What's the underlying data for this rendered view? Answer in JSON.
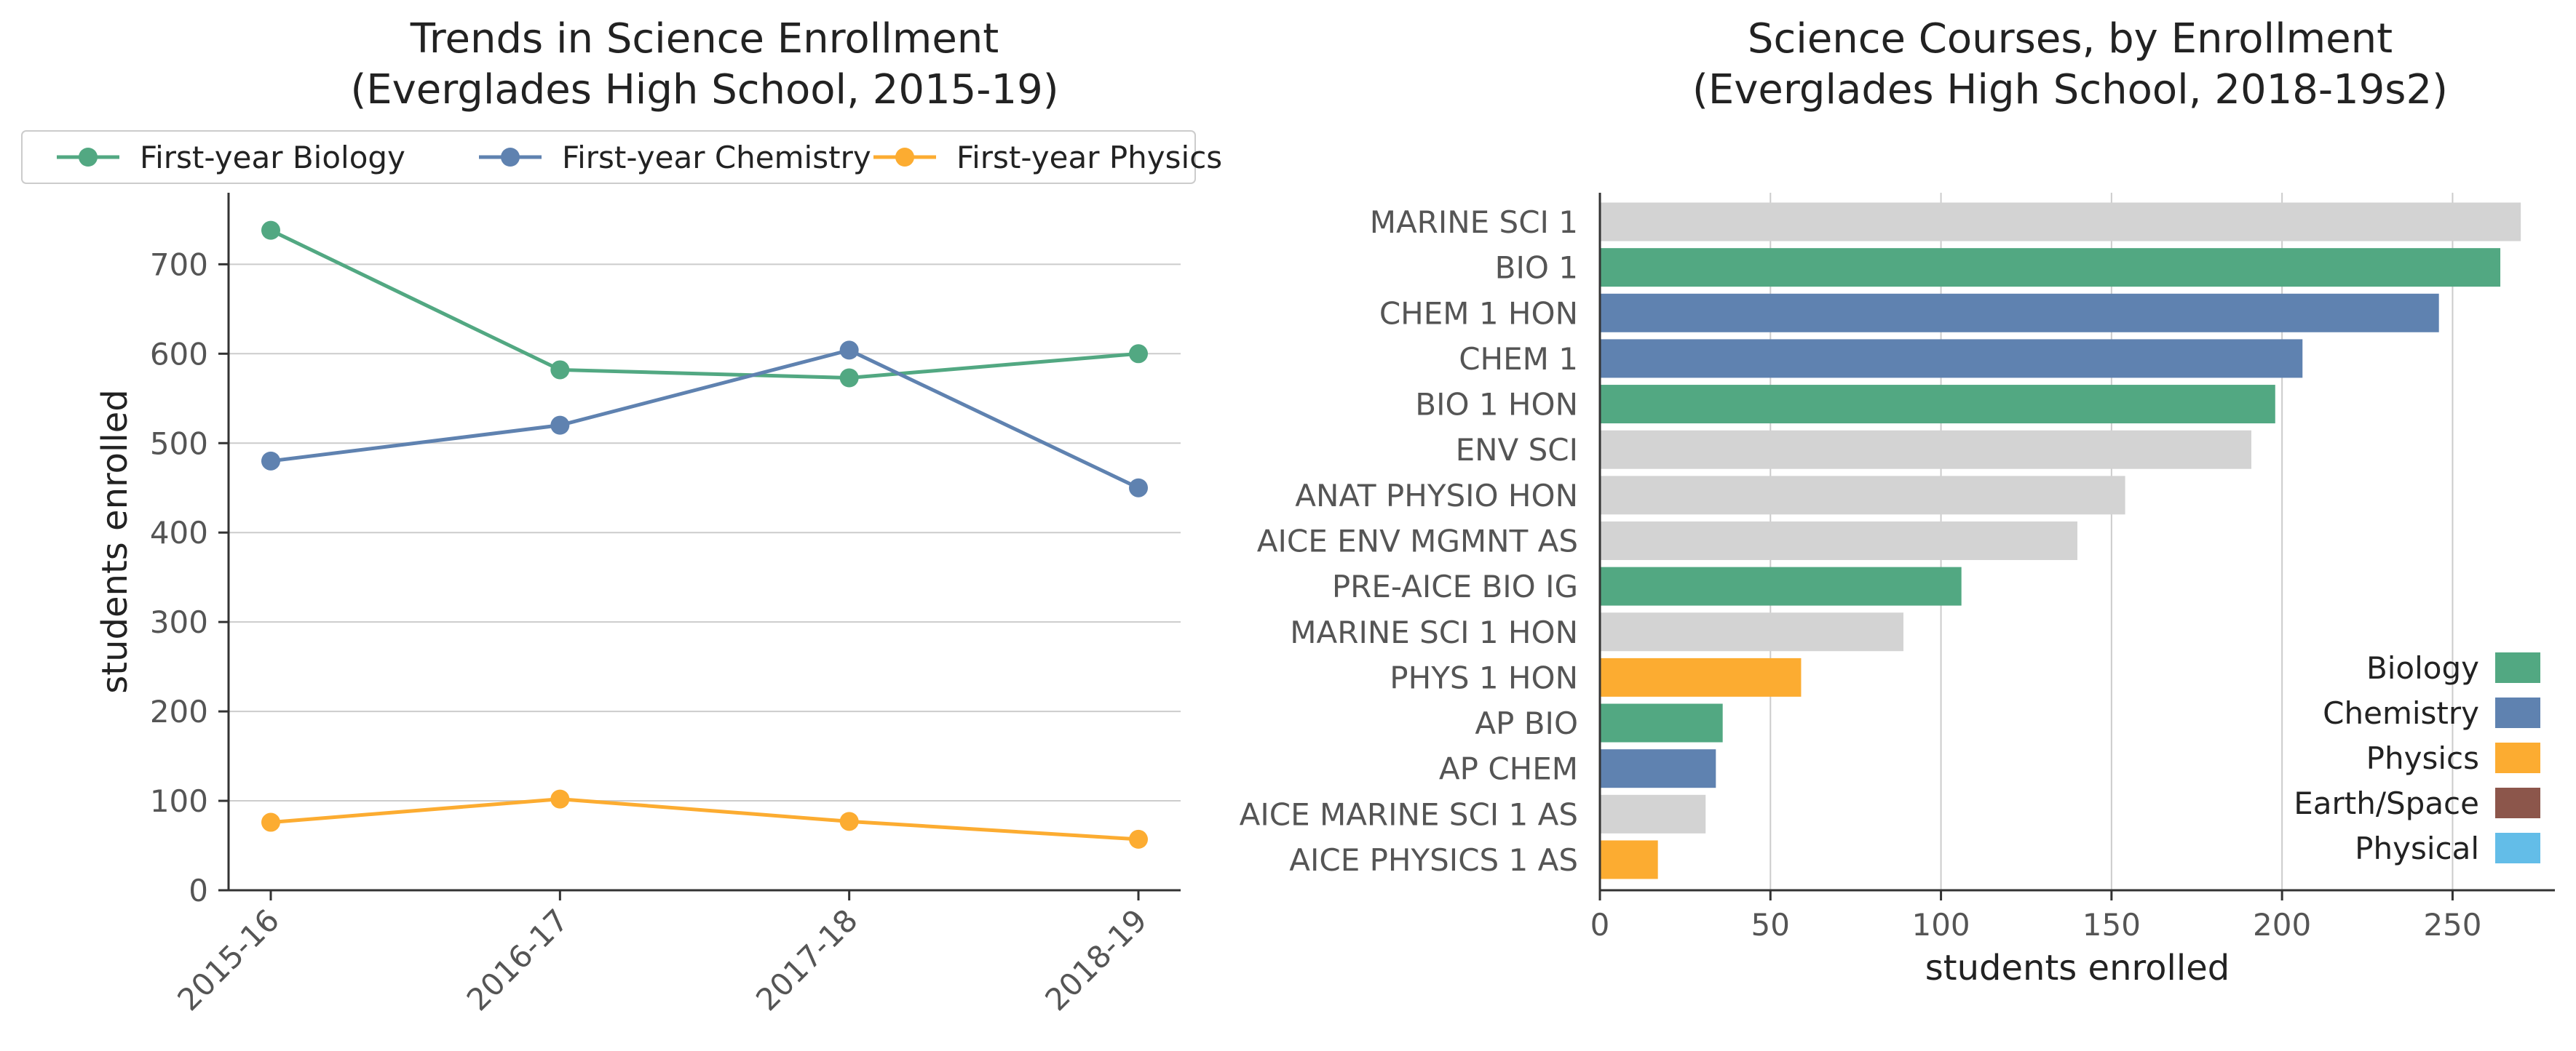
{
  "chart_data": [
    {
      "type": "line",
      "title": "Trends in Science Enrollment\n(Everglades High School, 2015-19)",
      "xlabel": "",
      "ylabel": "students enrolled",
      "x": [
        "2015-16",
        "2016-17",
        "2017-18",
        "2018-19"
      ],
      "ylim": [
        0,
        780
      ],
      "yticks": [
        0,
        100,
        200,
        300,
        400,
        500,
        600,
        700
      ],
      "grid": "horizontal",
      "legend": "top",
      "series": [
        {
          "name": "First-year Biology",
          "color": "#52a882",
          "values": [
            738,
            582,
            573,
            600
          ]
        },
        {
          "name": "First-year Chemistry",
          "color": "#5f82b0",
          "values": [
            480,
            520,
            604,
            450
          ]
        },
        {
          "name": "First-year Physics",
          "color": "#fcac31",
          "values": [
            76,
            102,
            77,
            57
          ]
        }
      ]
    },
    {
      "type": "bar",
      "orientation": "horizontal",
      "title": "Science Courses, by Enrollment\n(Everglades High School, 2018-19s2)",
      "xlabel": "students enrolled",
      "ylabel": "",
      "xlim": [
        0,
        280
      ],
      "xticks": [
        0,
        50,
        100,
        150,
        200,
        250
      ],
      "grid": "vertical",
      "legend": "bottom-right",
      "categories": [
        "MARINE SCI 1",
        "BIO 1",
        "CHEM 1 HON",
        "CHEM 1",
        "BIO 1 HON",
        "ENV SCI",
        "ANAT PHYSIO HON",
        "AICE ENV MGMNT AS",
        "PRE-AICE BIO IG",
        "MARINE SCI 1 HON",
        "PHYS 1 HON",
        "AP BIO",
        "AP CHEM",
        "AICE MARINE SCI 1 AS",
        "AICE PHYSICS 1 AS"
      ],
      "values": [
        270,
        264,
        246,
        206,
        198,
        191,
        154,
        140,
        106,
        89,
        59,
        36,
        34,
        31,
        17
      ],
      "subjects": [
        "Other",
        "Biology",
        "Chemistry",
        "Chemistry",
        "Biology",
        "Other",
        "Other",
        "Other",
        "Biology",
        "Other",
        "Physics",
        "Biology",
        "Chemistry",
        "Other",
        "Physics"
      ],
      "subject_colors": {
        "Biology": "#52a882",
        "Chemistry": "#5f82b0",
        "Physics": "#fcac31",
        "Earth/Space": "#8c564b",
        "Physical": "#63bde8",
        "Other": "#d3d3d3"
      },
      "legend_entries": [
        "Biology",
        "Chemistry",
        "Physics",
        "Earth/Space",
        "Physical"
      ]
    }
  ]
}
